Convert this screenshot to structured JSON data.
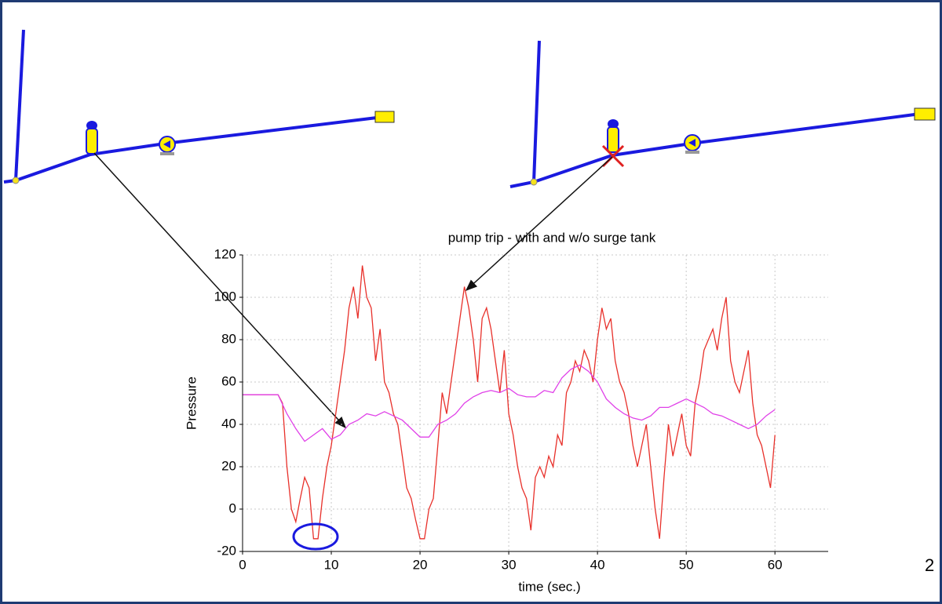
{
  "slide_number": "2",
  "chart_data": {
    "type": "line",
    "title": "pump trip - with and w/o surge tank",
    "x_label": "time (sec.)",
    "y_label": "Pressure",
    "xlim": [
      0,
      66
    ],
    "ylim": [
      -20,
      120
    ],
    "xticks": [
      0,
      10,
      20,
      30,
      40,
      50,
      60
    ],
    "yticks": [
      -20,
      0,
      20,
      40,
      60,
      80,
      100,
      120
    ],
    "grid": true,
    "series": [
      {
        "color": "#e8302a",
        "x": [
          0,
          4,
          4.5,
          5,
          5.5,
          6,
          6.5,
          7,
          7.5,
          8,
          8.5,
          9,
          9.5,
          10,
          10.5,
          11,
          11.5,
          12,
          12.5,
          13,
          13.5,
          14,
          14.5,
          15,
          15.5,
          16,
          16.5,
          17,
          17.5,
          18,
          18.5,
          19,
          19.5,
          20,
          20.5,
          21,
          21.5,
          22,
          22.5,
          23,
          23.5,
          24,
          24.5,
          25,
          25.5,
          26,
          26.5,
          27,
          27.5,
          28,
          28.5,
          29,
          29.5,
          30,
          30.5,
          31,
          31.5,
          32,
          32.5,
          33,
          33.5,
          34,
          34.5,
          35,
          35.5,
          36,
          36.5,
          37,
          37.5,
          38,
          38.5,
          39,
          39.5,
          40,
          40.5,
          41,
          41.5,
          42,
          42.5,
          43,
          43.5,
          44,
          44.5,
          45,
          45.5,
          46,
          46.5,
          47,
          47.5,
          48,
          48.5,
          49,
          49.5,
          50,
          50.5,
          51,
          51.5,
          52,
          52.5,
          53,
          53.5,
          54,
          54.5,
          55,
          55.5,
          56,
          56.5,
          57,
          57.5,
          58,
          58.5,
          59,
          59.5,
          60
        ],
        "values": [
          54,
          54,
          50,
          20,
          0,
          -6,
          5,
          15,
          10,
          -14,
          -14,
          5,
          20,
          30,
          45,
          60,
          75,
          95,
          105,
          90,
          115,
          100,
          95,
          70,
          85,
          60,
          55,
          45,
          40,
          25,
          10,
          5,
          -5,
          -14,
          -14,
          0,
          5,
          30,
          55,
          45,
          60,
          75,
          90,
          105,
          95,
          80,
          60,
          90,
          95,
          85,
          70,
          55,
          75,
          45,
          35,
          20,
          10,
          5,
          -10,
          15,
          20,
          15,
          25,
          20,
          35,
          30,
          55,
          60,
          70,
          65,
          75,
          70,
          60,
          80,
          95,
          85,
          90,
          70,
          60,
          55,
          45,
          30,
          20,
          30,
          40,
          20,
          0,
          -14,
          15,
          40,
          25,
          35,
          45,
          30,
          25,
          50,
          60,
          75,
          80,
          85,
          75,
          90,
          100,
          70,
          60,
          55,
          65,
          75,
          50,
          35,
          30,
          20,
          10,
          35
        ]
      },
      {
        "color": "#e040e8",
        "x": [
          0,
          4,
          5,
          6,
          7,
          8,
          9,
          10,
          11,
          12,
          13,
          14,
          15,
          16,
          17,
          18,
          19,
          20,
          21,
          22,
          23,
          24,
          25,
          26,
          27,
          28,
          29,
          30,
          31,
          32,
          33,
          34,
          35,
          36,
          37,
          38,
          39,
          40,
          41,
          42,
          43,
          44,
          45,
          46,
          47,
          48,
          49,
          50,
          51,
          52,
          53,
          54,
          55,
          56,
          57,
          58,
          59,
          60
        ],
        "values": [
          54,
          54,
          45,
          38,
          32,
          35,
          38,
          33,
          35,
          40,
          42,
          45,
          44,
          46,
          44,
          42,
          38,
          34,
          34,
          40,
          42,
          45,
          50,
          53,
          55,
          56,
          55,
          57,
          54,
          53,
          53,
          56,
          55,
          62,
          66,
          68,
          65,
          60,
          52,
          48,
          45,
          43,
          42,
          44,
          48,
          48,
          50,
          52,
          50,
          48,
          45,
          44,
          42,
          40,
          38,
          40,
          44,
          47
        ]
      }
    ]
  }
}
